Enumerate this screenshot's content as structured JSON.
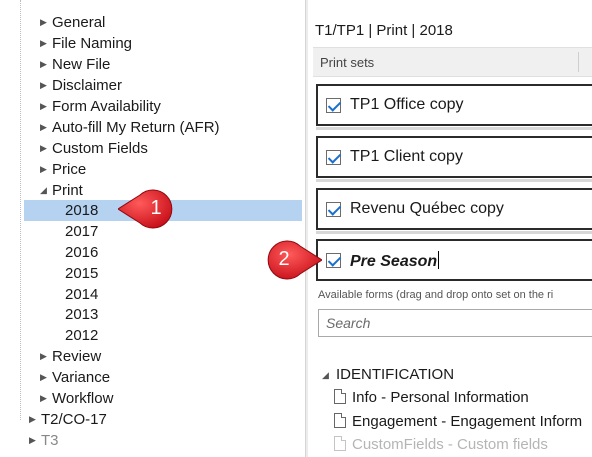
{
  "tree": {
    "items": [
      {
        "label": "General",
        "arrow": "▶"
      },
      {
        "label": "File Naming",
        "arrow": "▶"
      },
      {
        "label": "New File",
        "arrow": "▶"
      },
      {
        "label": "Disclaimer",
        "arrow": "▶"
      },
      {
        "label": "Form Availability",
        "arrow": "▶"
      },
      {
        "label": "Auto-fill My Return (AFR)",
        "arrow": "▶"
      },
      {
        "label": "Custom Fields",
        "arrow": "▶"
      },
      {
        "label": "Price",
        "arrow": "▶"
      },
      {
        "label": "Print",
        "arrow": "◢"
      },
      {
        "label": "2018",
        "arrow": ""
      },
      {
        "label": "2017",
        "arrow": ""
      },
      {
        "label": "2016",
        "arrow": ""
      },
      {
        "label": "2015",
        "arrow": ""
      },
      {
        "label": "2014",
        "arrow": ""
      },
      {
        "label": "2013",
        "arrow": ""
      },
      {
        "label": "2012",
        "arrow": ""
      },
      {
        "label": "Review",
        "arrow": "▶"
      },
      {
        "label": "Variance",
        "arrow": "▶"
      },
      {
        "label": "Workflow",
        "arrow": "▶"
      },
      {
        "label": "T2/CO-17",
        "arrow": "▶"
      },
      {
        "label": "T3",
        "arrow": "▶"
      }
    ]
  },
  "right": {
    "breadcrumb": "T1/TP1 | Print | 2018",
    "print_sets_header": "Print sets",
    "print_sets": [
      {
        "label": "TP1 Office copy",
        "checked": true
      },
      {
        "label": "TP1 Client copy",
        "checked": true
      },
      {
        "label": "Revenu Québec copy",
        "checked": true
      },
      {
        "label": "Pre Season",
        "checked": true
      }
    ],
    "available_forms_label": "Available forms (drag and drop onto set on the ri",
    "search_placeholder": "Search",
    "group": {
      "arrow": "◢",
      "label": "IDENTIFICATION"
    },
    "forms": [
      "Info - Personal Information",
      "Engagement - Engagement Inform",
      "CustomFields - Custom fields"
    ]
  },
  "callouts": [
    {
      "number": "1",
      "color": "#e31b23"
    },
    {
      "number": "2",
      "color": "#e31b23"
    }
  ],
  "colors": {
    "selection": "#b5d3f1",
    "checkmark": "#1b6fcf",
    "callout": "#e31b23"
  }
}
